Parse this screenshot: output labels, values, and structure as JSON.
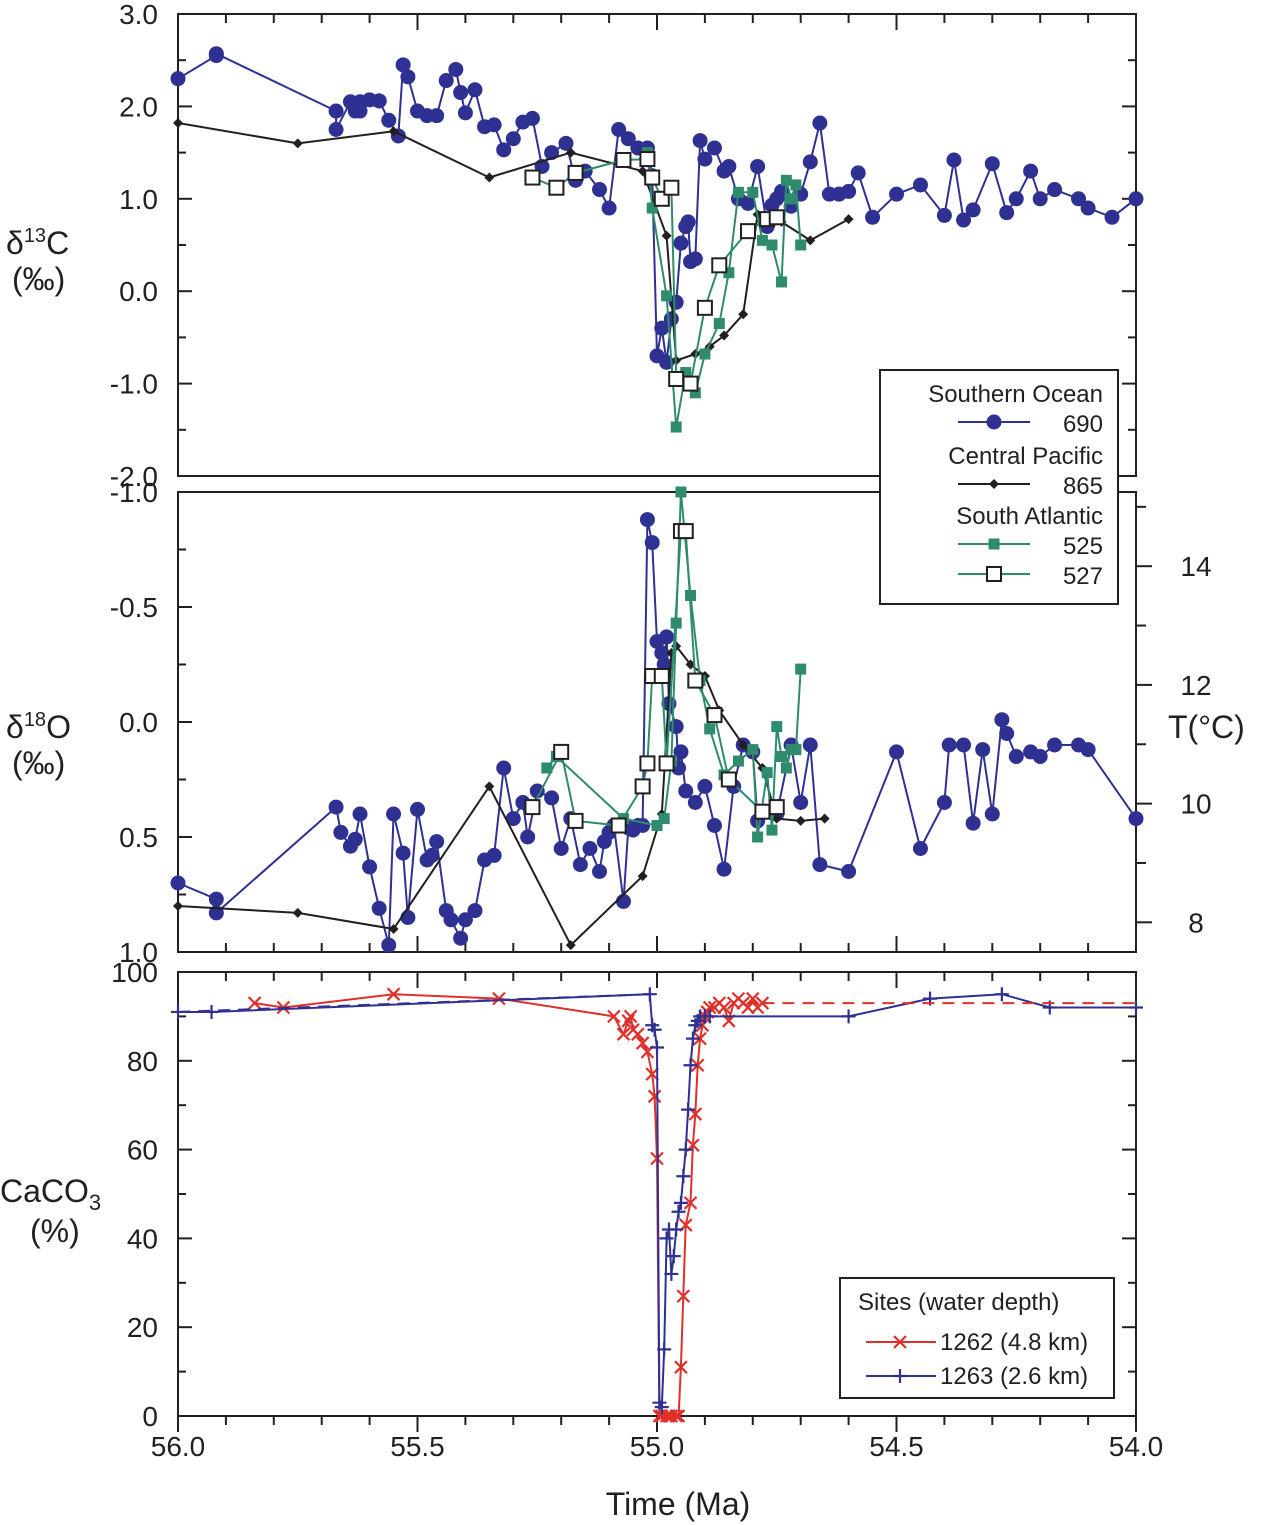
{
  "colors": {
    "s690": "#2e3192",
    "s865": "#231f20",
    "s525": "#2e8b6e",
    "s1262": "#e0302a",
    "s1263": "#2e3192",
    "axis": "#231f20"
  },
  "chart_data": [
    {
      "type": "scatter",
      "panel": "d13C",
      "ylabel_main": "δ",
      "ylabel_sup": "13",
      "ylabel_elem": "C",
      "ylabel_unit": "(‰)",
      "x_reversed": true,
      "xlim": [
        56.0,
        54.0
      ],
      "ylim": [
        -2.0,
        3.0
      ],
      "yticks": [
        "3.0",
        "2.0",
        "1.0",
        "0.0",
        "-1.0",
        "-2.0"
      ],
      "series": [
        {
          "name": "690",
          "marker": "circle",
          "color": "#2e3192",
          "x": [
            56.0,
            55.92,
            55.92,
            55.67,
            55.67,
            55.64,
            55.63,
            55.62,
            55.62,
            55.6,
            55.58,
            55.58,
            55.56,
            55.54,
            55.53,
            55.52,
            55.5,
            55.48,
            55.46,
            55.44,
            55.42,
            55.41,
            55.4,
            55.38,
            55.36,
            55.34,
            55.32,
            55.3,
            55.28,
            55.26,
            55.24,
            55.22,
            55.19,
            55.17,
            55.15,
            55.12,
            55.1,
            55.08,
            55.06,
            55.04,
            55.02,
            55.01,
            55.0,
            54.99,
            54.98,
            54.97,
            54.96,
            54.95,
            54.94,
            54.935,
            54.93,
            54.92,
            54.91,
            54.9,
            54.88,
            54.86,
            54.85,
            54.83,
            54.81,
            54.79,
            54.77,
            54.76,
            54.75,
            54.74,
            54.74,
            54.72,
            54.7,
            54.68,
            54.66,
            54.64,
            54.62,
            54.6,
            54.58,
            54.55,
            54.5,
            54.45,
            54.4,
            54.38,
            54.36,
            54.34,
            54.3,
            54.27,
            54.25,
            54.22,
            54.2,
            54.17,
            54.12,
            54.1,
            54.05,
            54.0
          ],
          "y": [
            2.3,
            2.55,
            2.57,
            1.95,
            1.75,
            2.05,
            1.95,
            1.95,
            2.05,
            2.07,
            2.06,
            2.06,
            1.85,
            1.68,
            2.45,
            2.32,
            1.95,
            1.9,
            1.9,
            2.28,
            2.4,
            2.15,
            1.93,
            2.18,
            1.78,
            1.8,
            1.53,
            1.65,
            1.83,
            1.87,
            1.35,
            1.5,
            1.6,
            1.2,
            1.3,
            1.1,
            0.9,
            1.75,
            1.65,
            1.55,
            1.55,
            1.25,
            -0.7,
            -0.4,
            -0.77,
            -0.3,
            -0.12,
            0.52,
            0.7,
            0.75,
            0.32,
            0.35,
            1.63,
            1.43,
            1.55,
            1.3,
            1.35,
            1.0,
            0.95,
            1.35,
            0.7,
            0.93,
            1.0,
            1.08,
            1.05,
            0.92,
            1.05,
            1.4,
            1.82,
            1.05,
            1.05,
            1.08,
            1.28,
            0.8,
            1.05,
            1.15,
            0.82,
            1.42,
            0.77,
            0.88,
            1.38,
            0.85,
            1.0,
            1.3,
            1.0,
            1.1,
            1.0,
            0.9,
            0.8,
            1.0
          ]
        },
        {
          "name": "865",
          "marker": "diamond",
          "color": "#231f20",
          "x": [
            56.0,
            55.75,
            55.55,
            55.35,
            55.18,
            55.03,
            54.98,
            54.96,
            54.92,
            54.89,
            54.86,
            54.82,
            54.79,
            54.74,
            54.68,
            54.6
          ],
          "y": [
            1.82,
            1.6,
            1.73,
            1.23,
            1.5,
            1.3,
            0.6,
            -0.75,
            -0.68,
            -0.6,
            -0.48,
            -0.25,
            0.83,
            0.75,
            0.55,
            0.78
          ]
        },
        {
          "name": "525",
          "marker": "square",
          "color": "#2e8b6e",
          "x": [
            55.02,
            55.01,
            54.98,
            54.96,
            54.94,
            54.92,
            54.9,
            54.87,
            54.85,
            54.83,
            54.8,
            54.78,
            54.76,
            54.74,
            54.73,
            54.72,
            54.71,
            54.7
          ],
          "y": [
            1.5,
            0.9,
            -0.05,
            -1.47,
            -0.88,
            -1.1,
            -0.68,
            -0.35,
            0.2,
            1.07,
            1.07,
            0.55,
            0.5,
            0.1,
            1.2,
            1.0,
            1.15,
            0.5
          ]
        },
        {
          "name": "527",
          "marker": "open-square",
          "color": "#2e8b6e",
          "x": [
            55.26,
            55.21,
            55.17,
            55.07,
            55.02,
            55.01,
            54.99,
            54.97,
            54.96,
            54.93,
            54.9,
            54.87,
            54.81,
            54.77,
            54.75
          ],
          "y": [
            1.23,
            1.12,
            1.28,
            1.42,
            1.43,
            1.23,
            1.0,
            1.12,
            -0.95,
            -1.0,
            -0.18,
            0.28,
            0.65,
            0.78,
            0.8
          ]
        }
      ]
    },
    {
      "type": "scatter",
      "panel": "d18O",
      "ylabel_main": "δ",
      "ylabel_sup": "18",
      "ylabel_elem": "O",
      "ylabel_unit": "(‰)",
      "y2label": "T(°C)",
      "x_reversed": true,
      "xlim": [
        56.0,
        54.0
      ],
      "ylim": [
        1.0,
        -1.0
      ],
      "yticks": [
        "-1.0",
        "-0.5",
        "0.0",
        "0.5",
        "1.0"
      ],
      "y2ticks": [
        "14",
        "12",
        "10",
        "8"
      ],
      "series": [
        {
          "name": "690",
          "marker": "circle",
          "color": "#2e3192",
          "x": [
            56.0,
            55.92,
            55.92,
            55.67,
            55.66,
            55.64,
            55.63,
            55.62,
            55.6,
            55.58,
            55.56,
            55.55,
            55.53,
            55.52,
            55.5,
            55.48,
            55.47,
            55.46,
            55.44,
            55.43,
            55.41,
            55.4,
            55.38,
            55.36,
            55.34,
            55.32,
            55.3,
            55.28,
            55.27,
            55.25,
            55.22,
            55.2,
            55.18,
            55.16,
            55.14,
            55.12,
            55.11,
            55.1,
            55.09,
            55.07,
            55.06,
            55.05,
            55.04,
            55.03,
            55.02,
            55.01,
            55.0,
            54.99,
            54.985,
            54.98,
            54.975,
            54.96,
            54.955,
            54.95,
            54.94,
            54.92,
            54.9,
            54.88,
            54.86,
            54.84,
            54.82,
            54.8,
            54.79,
            54.75,
            54.72,
            54.7,
            54.68,
            54.66,
            54.6,
            54.5,
            54.45,
            54.4,
            54.39,
            54.36,
            54.34,
            54.32,
            54.3,
            54.28,
            54.27,
            54.25,
            54.22,
            54.2,
            54.17,
            54.12,
            54.1,
            54.0
          ],
          "y": [
            0.7,
            0.77,
            0.83,
            0.37,
            0.48,
            0.54,
            0.51,
            0.4,
            0.63,
            0.81,
            0.97,
            0.4,
            0.57,
            0.85,
            0.38,
            0.6,
            0.58,
            0.52,
            0.82,
            0.86,
            0.94,
            0.86,
            0.82,
            0.6,
            0.58,
            0.2,
            0.42,
            0.35,
            0.5,
            0.3,
            0.33,
            0.55,
            0.42,
            0.62,
            0.55,
            0.65,
            0.52,
            0.48,
            0.45,
            0.78,
            0.46,
            0.47,
            0.45,
            0.45,
            -0.88,
            -0.78,
            -0.35,
            -0.3,
            -0.25,
            -0.37,
            -0.08,
            0.02,
            0.2,
            0.13,
            0.3,
            0.35,
            0.28,
            0.45,
            0.64,
            0.28,
            0.1,
            0.13,
            0.43,
            0.4,
            0.1,
            0.35,
            0.1,
            0.62,
            0.65,
            0.13,
            0.55,
            0.35,
            0.1,
            0.1,
            0.44,
            0.12,
            0.4,
            -0.01,
            0.05,
            0.15,
            0.13,
            0.15,
            0.1,
            0.1,
            0.12,
            0.42
          ]
        },
        {
          "name": "865",
          "marker": "diamond",
          "color": "#231f20",
          "x": [
            56.0,
            55.75,
            55.55,
            55.35,
            55.18,
            55.03,
            54.99,
            54.97,
            54.96,
            54.93,
            54.9,
            54.87,
            54.82,
            54.78,
            54.75,
            54.7,
            54.65
          ],
          "y": [
            0.8,
            0.83,
            0.9,
            0.28,
            0.97,
            0.67,
            0.4,
            -0.3,
            -0.33,
            -0.25,
            -0.2,
            -0.05,
            0.1,
            0.2,
            0.42,
            0.43,
            0.42
          ]
        },
        {
          "name": "525",
          "marker": "square",
          "color": "#2e8b6e",
          "x": [
            55.23,
            55.21,
            55.07,
            55.0,
            54.985,
            54.97,
            54.96,
            54.95,
            54.93,
            54.91,
            54.89,
            54.86,
            54.83,
            54.8,
            54.79,
            54.77,
            54.76,
            54.75,
            54.74,
            54.73,
            54.72,
            54.71,
            54.7
          ],
          "y": [
            0.2,
            0.15,
            0.42,
            0.45,
            0.42,
            0.17,
            -0.43,
            -1.0,
            -0.55,
            -0.18,
            0.03,
            0.23,
            0.17,
            0.12,
            0.5,
            0.22,
            0.47,
            0.02,
            0.15,
            0.2,
            0.12,
            0.12,
            -0.23
          ]
        },
        {
          "name": "527",
          "marker": "open-square",
          "color": "#2e8b6e",
          "x": [
            55.26,
            55.2,
            55.17,
            55.08,
            55.03,
            55.02,
            55.01,
            54.99,
            54.98,
            54.95,
            54.94,
            54.92,
            54.88,
            54.85,
            54.78,
            54.75
          ],
          "y": [
            0.37,
            0.13,
            0.43,
            0.45,
            0.28,
            0.18,
            -0.2,
            -0.2,
            0.18,
            -0.83,
            -0.83,
            -0.18,
            -0.03,
            0.25,
            0.39,
            0.37
          ]
        }
      ]
    },
    {
      "type": "line",
      "panel": "CaCO3",
      "ylabel_main": "CaCO",
      "ylabel_sub": "3",
      "ylabel_unit": "(%)",
      "xlabel": "Time (Ma)",
      "x_reversed": true,
      "xlim": [
        56.0,
        54.0
      ],
      "ylim": [
        0,
        100
      ],
      "xticks": [
        "56.0",
        "55.5",
        "55.0",
        "54.5",
        "54.0"
      ],
      "yticks": [
        "100",
        "80",
        "60",
        "40",
        "20",
        "0"
      ],
      "legend_title": "Sites (water depth)",
      "series": [
        {
          "name": "1262 (4.8 km)",
          "marker": "x",
          "color": "#e0302a",
          "x": [
            55.84,
            55.78,
            55.55,
            55.33,
            55.09,
            55.07,
            55.06,
            55.055,
            55.05,
            55.04,
            55.03,
            55.02,
            55.01,
            55.005,
            55.0,
            54.995,
            54.99,
            54.98,
            54.975,
            54.97,
            54.96,
            54.955,
            54.95,
            54.945,
            54.94,
            54.93,
            54.925,
            54.92,
            54.915,
            54.91,
            54.905,
            54.9,
            54.895,
            54.89,
            54.88,
            54.87,
            54.86,
            54.85,
            54.84,
            54.83,
            54.82,
            54.81,
            54.8,
            54.79,
            54.78
          ],
          "y": [
            93,
            92,
            95,
            94,
            90,
            86,
            89,
            90,
            87,
            86,
            84,
            82,
            77,
            72,
            58,
            0,
            0,
            0,
            0,
            0,
            0,
            0,
            11,
            27,
            43,
            48,
            61,
            68,
            79,
            85,
            88,
            90,
            91,
            92,
            92,
            93,
            92,
            89,
            93,
            94,
            93,
            92,
            94,
            92,
            93
          ]
        },
        {
          "name": "1263 (2.6 km)",
          "marker": "plus",
          "color": "#2e3192",
          "x": [
            56.0,
            55.93,
            55.015,
            55.01,
            55.005,
            55.0,
            54.995,
            54.99,
            54.985,
            54.98,
            54.975,
            54.97,
            54.965,
            54.96,
            54.955,
            54.95,
            54.945,
            54.94,
            54.935,
            54.93,
            54.925,
            54.92,
            54.915,
            54.91,
            54.9,
            54.89,
            54.6,
            54.43,
            54.28,
            54.18,
            54.0
          ],
          "y": [
            91,
            91,
            95,
            88,
            87,
            83,
            3,
            2,
            15,
            40,
            42,
            32,
            36,
            42,
            46,
            48,
            54,
            60,
            69,
            79,
            85,
            88,
            89,
            90,
            90,
            90,
            90,
            94,
            95,
            92,
            92
          ]
        },
        {
          "name": "1262 (4.8 km)",
          "marker": "none",
          "color": "#e0302a",
          "dashed": true,
          "x": [
            54.78,
            54.0
          ],
          "y": [
            93,
            93
          ]
        },
        {
          "name": "1263 (2.6 km)",
          "marker": "none",
          "color": "#2e3192",
          "dashed": true,
          "x": [
            56.0,
            55.015
          ],
          "y": [
            91,
            95
          ]
        }
      ]
    }
  ],
  "legend_top": {
    "groups": [
      {
        "region": "Southern Ocean",
        "entries": [
          {
            "label": "690",
            "marker": "circle",
            "color": "#2e3192"
          }
        ]
      },
      {
        "region": "Central Pacific",
        "entries": [
          {
            "label": "865",
            "marker": "diamond",
            "color": "#231f20"
          }
        ]
      },
      {
        "region": "South Atlantic",
        "entries": [
          {
            "label": "525",
            "marker": "square",
            "color": "#2e8b6e"
          },
          {
            "label": "527",
            "marker": "open-square",
            "color": "#2e8b6e"
          }
        ]
      }
    ]
  },
  "legend_bottom": {
    "title": "Sites (water depth)",
    "entries": [
      {
        "label": "1262 (4.8 km)",
        "marker": "x",
        "color": "#e0302a"
      },
      {
        "label": "1263 (2.6 km)",
        "marker": "plus",
        "color": "#2e3192"
      }
    ]
  }
}
